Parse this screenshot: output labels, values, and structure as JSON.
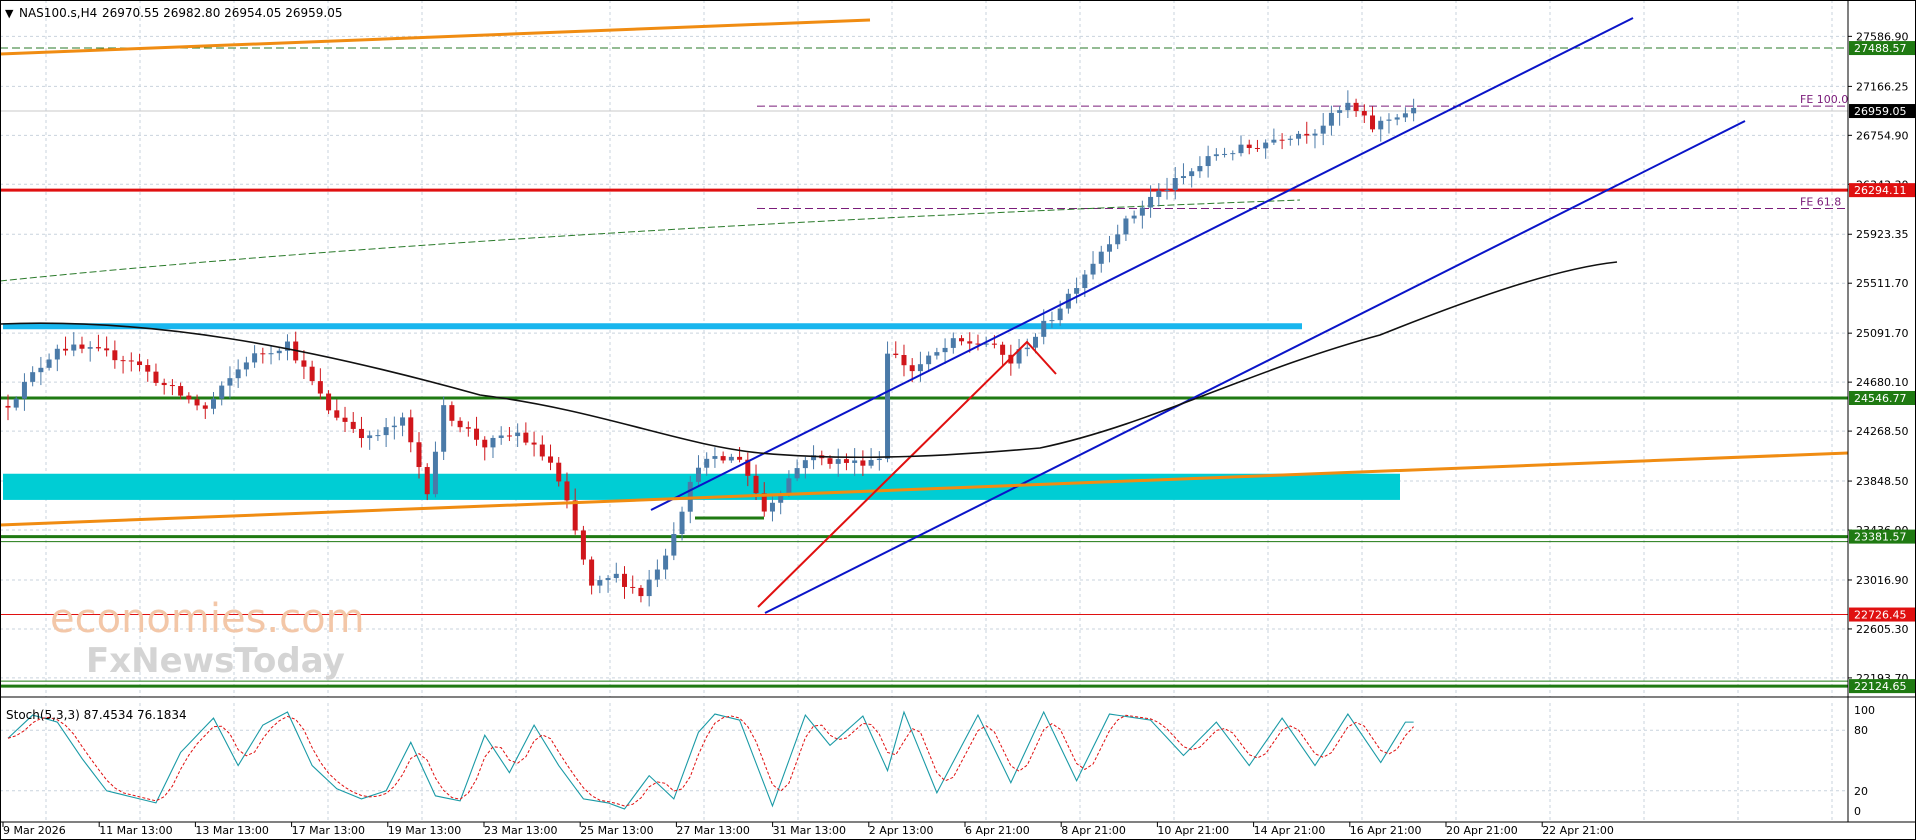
{
  "header": {
    "symbol_label": "NAS100.s,H4",
    "ohlc_text": "26970.55 26982.80 26954.05 26959.05"
  },
  "watermark": {
    "line1": "economies.com",
    "line2": "FxNewsToday"
  },
  "colors": {
    "bull": "#4a7aa8",
    "bear": "#d0161b",
    "channel": "#0a14c8",
    "orange": "#f08c12",
    "cyan_line": "#19b6ee",
    "cyan_zone": "#00cdd4",
    "green_line": "#1f7a12",
    "red_line": "#e01010",
    "ma": "#111111",
    "long_ma": "#2a7a2a",
    "stoch_main": "#1a9aa6",
    "stoch_signal": "#e01010",
    "fib": "#7a1c7a"
  },
  "chart_data": [
    {
      "type": "candlestick",
      "symbol": "NAS100.s",
      "timeframe": "H4",
      "ylim": [
        22050,
        27900
      ],
      "price_axis_ticks": [
        "27586.90",
        "27166.25",
        "26754.90",
        "26343.30",
        "25923.35",
        "25511.70",
        "25091.70",
        "24680.10",
        "24268.50",
        "23848.50",
        "23436.90",
        "23016.90",
        "22605.30",
        "22193.70"
      ],
      "time_axis_labels": [
        "9 Mar 2026",
        "11 Mar 13:00",
        "13 Mar 13:00",
        "17 Mar 13:00",
        "19 Mar 13:00",
        "23 Mar 13:00",
        "25 Mar 13:00",
        "27 Mar 13:00",
        "31 Mar 13:00",
        "2 Apr 13:00",
        "6 Apr 21:00",
        "8 Apr 21:00",
        "10 Apr 21:00",
        "14 Apr 21:00",
        "16 Apr 21:00",
        "20 Apr 21:00",
        "22 Apr 21:00"
      ],
      "price_anchors": [
        [
          0,
          24500
        ],
        [
          6,
          24980
        ],
        [
          10,
          24940
        ],
        [
          15,
          24870
        ],
        [
          19,
          24650
        ],
        [
          24,
          24450
        ],
        [
          29,
          24870
        ],
        [
          34,
          25010
        ],
        [
          39,
          24450
        ],
        [
          44,
          24200
        ],
        [
          48,
          24350
        ],
        [
          51,
          23780
        ],
        [
          53,
          24450
        ],
        [
          58,
          24150
        ],
        [
          62,
          24250
        ],
        [
          66,
          24000
        ],
        [
          68,
          23650
        ],
        [
          71,
          22950
        ],
        [
          74,
          23050
        ],
        [
          77,
          22900
        ],
        [
          80,
          23250
        ],
        [
          84,
          24000
        ],
        [
          89,
          24050
        ],
        [
          92,
          23600
        ],
        [
          97,
          24050
        ],
        [
          103,
          24000
        ],
        [
          106,
          24050
        ],
        [
          107,
          24950
        ],
        [
          110,
          24780
        ],
        [
          115,
          25010
        ],
        [
          119,
          25010
        ],
        [
          122,
          24850
        ],
        [
          127,
          25230
        ],
        [
          130,
          25510
        ],
        [
          134,
          25880
        ],
        [
          139,
          26230
        ],
        [
          143,
          26400
        ],
        [
          147,
          26600
        ],
        [
          151,
          26650
        ],
        [
          155,
          26750
        ],
        [
          159,
          26800
        ],
        [
          163,
          27010
        ],
        [
          166,
          26820
        ],
        [
          169,
          26930
        ],
        [
          171,
          26959
        ]
      ],
      "levels": [
        {
          "price": 27488.57,
          "label": "27488.57",
          "style": "dashed",
          "color": "#2a7a2a",
          "tag_bg": "#1f7a12"
        },
        {
          "price": 26959.05,
          "label": "26959.05",
          "style": "thin",
          "color": "#c8c8c8",
          "tag_bg": "#000000"
        },
        {
          "price": 26294.11,
          "label": "26294.11",
          "style": "solid",
          "color": "#e01010",
          "tag_bg": "#e01010"
        },
        {
          "price": 24546.77,
          "label": "24546.77",
          "style": "solid",
          "color": "#1f7a12",
          "tag_bg": "#1f7a12"
        },
        {
          "price": 23381.57,
          "label": "23381.57",
          "style": "solid",
          "color": "#1f7a12",
          "tag_bg": "#1f7a12"
        },
        {
          "price": 22726.45,
          "label": "22726.45",
          "style": "thin",
          "color": "#e01010",
          "tag_bg": "#e01010"
        },
        {
          "price": 22124.65,
          "label": "22124.65",
          "style": "solid",
          "color": "#1f7a12",
          "tag_bg": "#1f7a12"
        }
      ],
      "fib_levels": [
        {
          "label": "FE 100.0",
          "price": 27000
        },
        {
          "label": "FE 61.8",
          "price": 26140
        }
      ],
      "resistance_zone_price": 25150,
      "support_zone_price": [
        23690,
        23910
      ]
    },
    {
      "type": "line",
      "title": "Stoch(5,3,3) 87.4534 76.1834",
      "indicator": "Stoch(5,3,3)",
      "main_value": 87.4534,
      "signal_value": 76.1834,
      "ylim": [
        0,
        100
      ],
      "y_ticks": [
        "100",
        "80",
        "20",
        "0"
      ],
      "main_anchors": [
        [
          0,
          72
        ],
        [
          3,
          95
        ],
        [
          6,
          88
        ],
        [
          9,
          52
        ],
        [
          12,
          20
        ],
        [
          15,
          14
        ],
        [
          18,
          8
        ],
        [
          21,
          58
        ],
        [
          25,
          92
        ],
        [
          28,
          45
        ],
        [
          31,
          85
        ],
        [
          34,
          98
        ],
        [
          37,
          45
        ],
        [
          40,
          22
        ],
        [
          43,
          12
        ],
        [
          46,
          20
        ],
        [
          49,
          68
        ],
        [
          52,
          15
        ],
        [
          55,
          10
        ],
        [
          58,
          75
        ],
        [
          61,
          38
        ],
        [
          64,
          85
        ],
        [
          67,
          45
        ],
        [
          70,
          12
        ],
        [
          73,
          8
        ],
        [
          75,
          2
        ],
        [
          78,
          35
        ],
        [
          81,
          12
        ],
        [
          84,
          78
        ],
        [
          86,
          96
        ],
        [
          89,
          90
        ],
        [
          93,
          5
        ],
        [
          97,
          95
        ],
        [
          100,
          65
        ],
        [
          104,
          94
        ],
        [
          107,
          40
        ],
        [
          109,
          98
        ],
        [
          113,
          18
        ],
        [
          118,
          95
        ],
        [
          122,
          28
        ],
        [
          126,
          98
        ],
        [
          130,
          30
        ],
        [
          134,
          96
        ],
        [
          139,
          90
        ],
        [
          143,
          55
        ],
        [
          147,
          88
        ],
        [
          151,
          45
        ],
        [
          155,
          92
        ],
        [
          159,
          45
        ],
        [
          163,
          96
        ],
        [
          167,
          48
        ],
        [
          170,
          88
        ]
      ]
    }
  ]
}
